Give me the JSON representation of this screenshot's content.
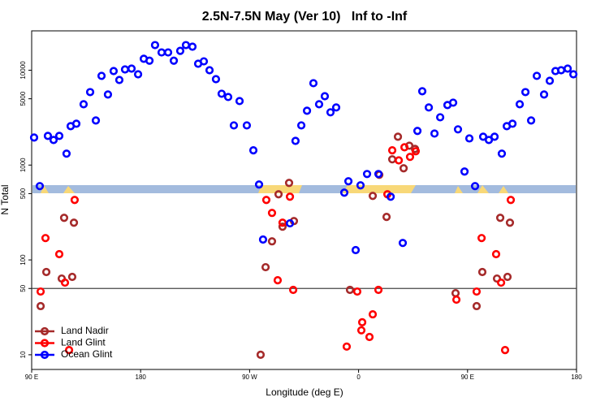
{
  "chart_data": {
    "type": "scatter",
    "title": "2.5N-7.5N May (Ver 10)   Inf to -Inf",
    "x_label": "Longitude (deg E)",
    "y_label": "N Total",
    "xlim": [
      90,
      540
    ],
    "xticks": [
      {
        "value": 90,
        "label": "90 E"
      },
      {
        "value": 180,
        "label": "180"
      },
      {
        "value": 270,
        "label": "90 W"
      },
      {
        "value": 360,
        "label": "0"
      },
      {
        "value": 450,
        "label": "90 E"
      },
      {
        "value": 540,
        "label": "180"
      }
    ],
    "ylim": [
      7,
      26000
    ],
    "yticks": [
      10,
      50,
      100,
      500,
      1000,
      5000,
      10000
    ],
    "log_y": true,
    "reference_line": 50,
    "legend": "bottom-left",
    "series": [
      {
        "name": "Land Nadir",
        "color": "#a52a2a",
        "x": [
          97.4,
          102.1,
          114.8,
          116.8,
          123.5,
          124.9,
          279.1,
          283.2,
          288.5,
          293.9,
          297.2,
          302.6,
          306.6,
          352.9,
          371.7,
          377.1,
          383.1,
          387.8,
          392.5,
          397.2,
          401.9,
          406.6,
          440.1,
          457.5,
          462.2,
          474.3,
          477.0,
          483.0,
          485.0
        ],
        "values": [
          32.6,
          74.5,
          63.6,
          278,
          66.2,
          247,
          10,
          83.8,
          157,
          492,
          224,
          649,
          257,
          48.3,
          473,
          789,
          284,
          1150,
          1990,
          925,
          1600,
          1480,
          44.6,
          32.6,
          74.5,
          63.6,
          278,
          66.2,
          247
        ]
      },
      {
        "name": "Land Glint",
        "color": "#ff0000",
        "x": [
          97.4,
          101.4,
          112.8,
          117.5,
          120.9,
          125.5,
          283.8,
          288.5,
          293.2,
          297.2,
          303.3,
          306.0,
          350.2,
          358.9,
          362.3,
          363.0,
          369.0,
          371.7,
          376.4,
          383.8,
          387.8,
          393.2,
          397.9,
          402.5,
          407.2,
          440.8,
          457.5,
          461.6,
          473.6,
          477.7,
          481.0,
          485.7
        ],
        "values": [
          46.4,
          170,
          115,
          57.6,
          11.2,
          429,
          429,
          313,
          61.1,
          247,
          464,
          48.3,
          12.2,
          46.4,
          18.1,
          22.0,
          15.4,
          26.7,
          48.3,
          492,
          1430,
          1120,
          1540,
          1220,
          1400,
          38.1,
          46.4,
          170,
          115,
          57.6,
          11.2,
          429
        ]
      },
      {
        "name": "Ocean Glint",
        "color": "#0000ff",
        "x": [
          92.0,
          96.7,
          103.4,
          108.1,
          112.8,
          118.8,
          122.2,
          126.9,
          132.9,
          138.3,
          143.0,
          147.7,
          153.0,
          157.7,
          162.4,
          167.1,
          172.5,
          177.9,
          182.6,
          187.3,
          191.9,
          197.3,
          202.7,
          207.4,
          212.7,
          217.4,
          222.8,
          227.5,
          232.2,
          236.9,
          242.2,
          246.9,
          252.3,
          257.0,
          261.7,
          267.7,
          273.1,
          277.8,
          281.1,
          303.3,
          307.9,
          312.7,
          317.4,
          322.7,
          327.4,
          332.1,
          336.8,
          341.5,
          348.2,
          351.6,
          357.6,
          361.6,
          367.0,
          376.4,
          386.5,
          396.5,
          408.6,
          412.6,
          418.0,
          422.7,
          427.4,
          433.4,
          438.1,
          442.1,
          447.5,
          451.5,
          456.2,
          462.9,
          467.6,
          472.3,
          478.3,
          482.4,
          487.1,
          493.1,
          497.8,
          502.5,
          507.2,
          513.2,
          517.9,
          522.6,
          527.3,
          532.7,
          537.4
        ],
        "values": [
          1950,
          600,
          2030,
          1840,
          2030,
          1320,
          2570,
          2730,
          4380,
          5880,
          2950,
          8720,
          5550,
          9800,
          7890,
          10200,
          10400,
          9060,
          13200,
          12600,
          18400,
          15400,
          15400,
          12600,
          16000,
          18400,
          17700,
          11700,
          12400,
          10000,
          8050,
          5650,
          5220,
          2620,
          4730,
          2620,
          1430,
          624,
          164,
          243,
          1800,
          2620,
          3740,
          7300,
          4380,
          5320,
          3600,
          4050,
          512,
          675,
          127,
          611,
          805,
          805,
          464,
          151,
          2290,
          6000,
          4050,
          2150,
          3190,
          4290,
          4550,
          2380,
          855,
          1910,
          600,
          1990,
          1840,
          1990,
          1320,
          2570,
          2730,
          4380,
          5880,
          2950,
          8720,
          5550,
          7740,
          9800,
          10000,
          10400,
          9060
        ]
      }
    ]
  }
}
